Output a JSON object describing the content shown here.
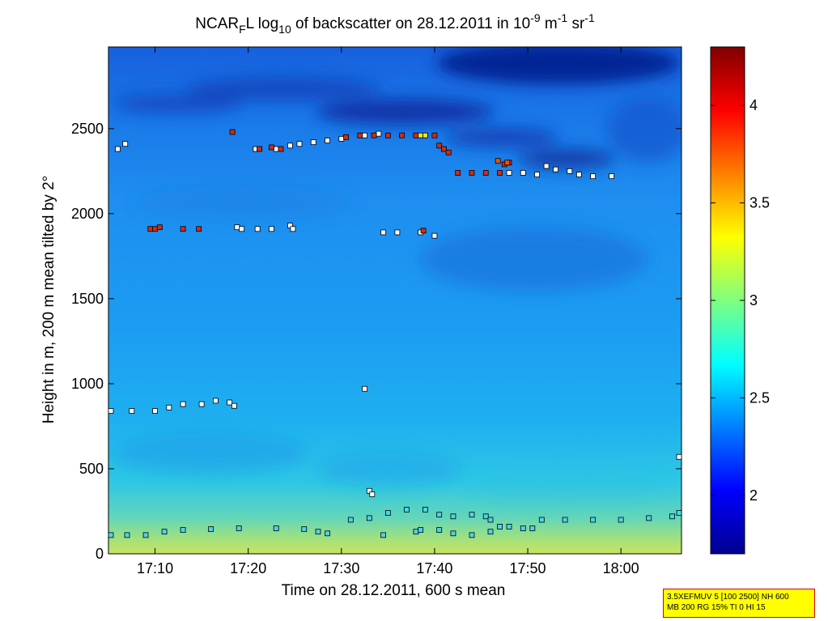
{
  "chart_data": {
    "type": "scatter",
    "title": {
      "prefix": "NCAR",
      "sub_f": "F",
      "mid1": "L log",
      "sub_10": "10",
      "mid2": " of backscatter on 28.12.2011 in 10",
      "sup_minus9": "-9",
      "unit_m": " m",
      "sup_minus1a": "-1",
      "unit_sr": " sr",
      "sup_minus1b": "-1"
    },
    "xlabel": "Time on 28.12.2011, 600 s mean",
    "ylabel": "Height in m, 200 m mean tilted by 2°",
    "xlim_minutes": [
      1025,
      1086.5
    ],
    "ylim": [
      0,
      2980
    ],
    "x_ticks": [
      {
        "minute": 1030,
        "label": "17:10"
      },
      {
        "minute": 1040,
        "label": "17:20"
      },
      {
        "minute": 1050,
        "label": "17:30"
      },
      {
        "minute": 1060,
        "label": "17:40"
      },
      {
        "minute": 1070,
        "label": "17:50"
      },
      {
        "minute": 1080,
        "label": "18:00"
      }
    ],
    "y_ticks": [
      {
        "value": 0,
        "label": "0"
      },
      {
        "value": 500,
        "label": "500"
      },
      {
        "value": 1000,
        "label": "1000"
      },
      {
        "value": 1500,
        "label": "1500"
      },
      {
        "value": 2000,
        "label": "2000"
      },
      {
        "value": 2500,
        "label": "2500"
      }
    ],
    "colorbar": {
      "range": [
        1.7,
        4.3
      ],
      "ticks": [
        {
          "value": 2,
          "label": "2"
        },
        {
          "value": 2.5,
          "label": "2.5"
        },
        {
          "value": 3,
          "label": "3"
        },
        {
          "value": 3.5,
          "label": "3.5"
        },
        {
          "value": 4,
          "label": "4"
        }
      ]
    },
    "background_field_note": "log10 backscatter field: ~2.3 (blue) aloft, ~1.9 (dark blue) in patches above 2400 m, rising to ~2.9 (green-yellow) near the surface",
    "series": [
      {
        "name": "white markers",
        "color": "#ffffff",
        "points": [
          [
            1025,
            840
          ],
          [
            1027.5,
            840
          ],
          [
            1030,
            840
          ],
          [
            1031.5,
            860
          ],
          [
            1033,
            880
          ],
          [
            1035,
            880
          ],
          [
            1036.5,
            900
          ],
          [
            1038,
            890
          ],
          [
            1038.5,
            870
          ],
          [
            1026,
            2380
          ],
          [
            1026.8,
            2410
          ],
          [
            1038.8,
            1920
          ],
          [
            1039.3,
            1910
          ],
          [
            1041,
            1910
          ],
          [
            1042.5,
            1910
          ],
          [
            1044.5,
            1930
          ],
          [
            1044.8,
            1910
          ],
          [
            1040.8,
            2380
          ],
          [
            1043,
            2380
          ],
          [
            1044.5,
            2400
          ],
          [
            1045.5,
            2410
          ],
          [
            1047,
            2420
          ],
          [
            1048.5,
            2430
          ],
          [
            1050,
            2440
          ],
          [
            1052.5,
            2460
          ],
          [
            1054,
            2470
          ],
          [
            1054.5,
            1890
          ],
          [
            1056,
            1890
          ],
          [
            1058.5,
            1890
          ],
          [
            1060,
            1870
          ],
          [
            1052.5,
            970
          ],
          [
            1053,
            370
          ],
          [
            1053.3,
            350
          ],
          [
            1068,
            2240
          ],
          [
            1069.5,
            2240
          ],
          [
            1071,
            2230
          ],
          [
            1072,
            2280
          ],
          [
            1073,
            2260
          ],
          [
            1074.5,
            2250
          ],
          [
            1075.5,
            2230
          ],
          [
            1077,
            2220
          ],
          [
            1079,
            2220
          ],
          [
            1086.5,
            570
          ]
        ]
      },
      {
        "name": "cyan markers",
        "color": "#4ad6e6",
        "points": [
          [
            1025,
            110
          ],
          [
            1027,
            110
          ],
          [
            1029,
            110
          ],
          [
            1031,
            130
          ],
          [
            1033,
            140
          ],
          [
            1036,
            145
          ],
          [
            1039,
            150
          ],
          [
            1043,
            150
          ],
          [
            1046,
            145
          ],
          [
            1047.5,
            130
          ],
          [
            1048.5,
            120
          ],
          [
            1051,
            200
          ],
          [
            1053,
            210
          ],
          [
            1055,
            240
          ],
          [
            1057,
            260
          ],
          [
            1059,
            260
          ],
          [
            1060.5,
            230
          ],
          [
            1062,
            220
          ],
          [
            1064,
            230
          ],
          [
            1065.5,
            220
          ],
          [
            1066,
            200
          ],
          [
            1054.5,
            110
          ],
          [
            1058,
            130
          ],
          [
            1058.5,
            140
          ],
          [
            1060.5,
            140
          ],
          [
            1062,
            120
          ],
          [
            1064,
            110
          ],
          [
            1066,
            130
          ],
          [
            1067,
            160
          ],
          [
            1068,
            160
          ],
          [
            1069.5,
            150
          ],
          [
            1070.5,
            150
          ],
          [
            1071.5,
            200
          ],
          [
            1074,
            200
          ],
          [
            1077,
            200
          ],
          [
            1080,
            200
          ],
          [
            1083,
            210
          ],
          [
            1085.5,
            220
          ],
          [
            1086.5,
            240
          ]
        ]
      },
      {
        "name": "red markers",
        "color": "#d42a12",
        "points": [
          [
            1029.5,
            1910
          ],
          [
            1030,
            1910
          ],
          [
            1030.5,
            1920
          ],
          [
            1033,
            1910
          ],
          [
            1034.7,
            1910
          ],
          [
            1038.3,
            2480
          ],
          [
            1041.2,
            2380
          ],
          [
            1042.5,
            2390
          ],
          [
            1043.5,
            2380
          ],
          [
            1050.5,
            2450
          ],
          [
            1052,
            2460
          ],
          [
            1053.5,
            2460
          ],
          [
            1055,
            2460
          ],
          [
            1056.5,
            2460
          ],
          [
            1058,
            2460
          ],
          [
            1058.8,
            1900
          ],
          [
            1060,
            2460
          ],
          [
            1060.5,
            2400
          ],
          [
            1061,
            2380
          ],
          [
            1061.5,
            2360
          ],
          [
            1062.5,
            2240
          ],
          [
            1064,
            2240
          ],
          [
            1065.5,
            2240
          ],
          [
            1067,
            2240
          ],
          [
            1067.5,
            2290
          ],
          [
            1068,
            2300
          ]
        ]
      },
      {
        "name": "orange markers",
        "color": "#e8520e",
        "points": [
          [
            1066.8,
            2310
          ],
          [
            1067.8,
            2300
          ]
        ]
      },
      {
        "name": "yellow markers",
        "color": "#f2e414",
        "points": [
          [
            1058.5,
            2460
          ],
          [
            1059,
            2460
          ]
        ]
      }
    ]
  },
  "info_box": {
    "line1": "3.5XEFMUV 5 [100 2500] NH 600",
    "line2": "MB 200 RG 15% TI 0 HI 15"
  }
}
